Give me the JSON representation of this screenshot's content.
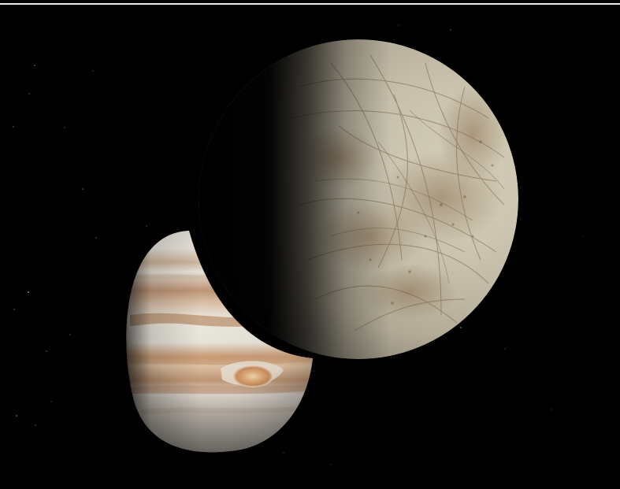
{
  "scene": {
    "subjects": [
      {
        "id": "jupiter",
        "kind": "planet",
        "phase": "crescent"
      },
      {
        "id": "europa",
        "kind": "moon",
        "phase": "gibbous"
      }
    ],
    "colors": {
      "space": "#000000",
      "jupiter_light": "#e6e2d8",
      "jupiter_band": "#c9a079",
      "jupiter_red_spot": "#d9a470",
      "europa_light": "#d8d2bf",
      "europa_stain": "#9a7f5c"
    }
  }
}
